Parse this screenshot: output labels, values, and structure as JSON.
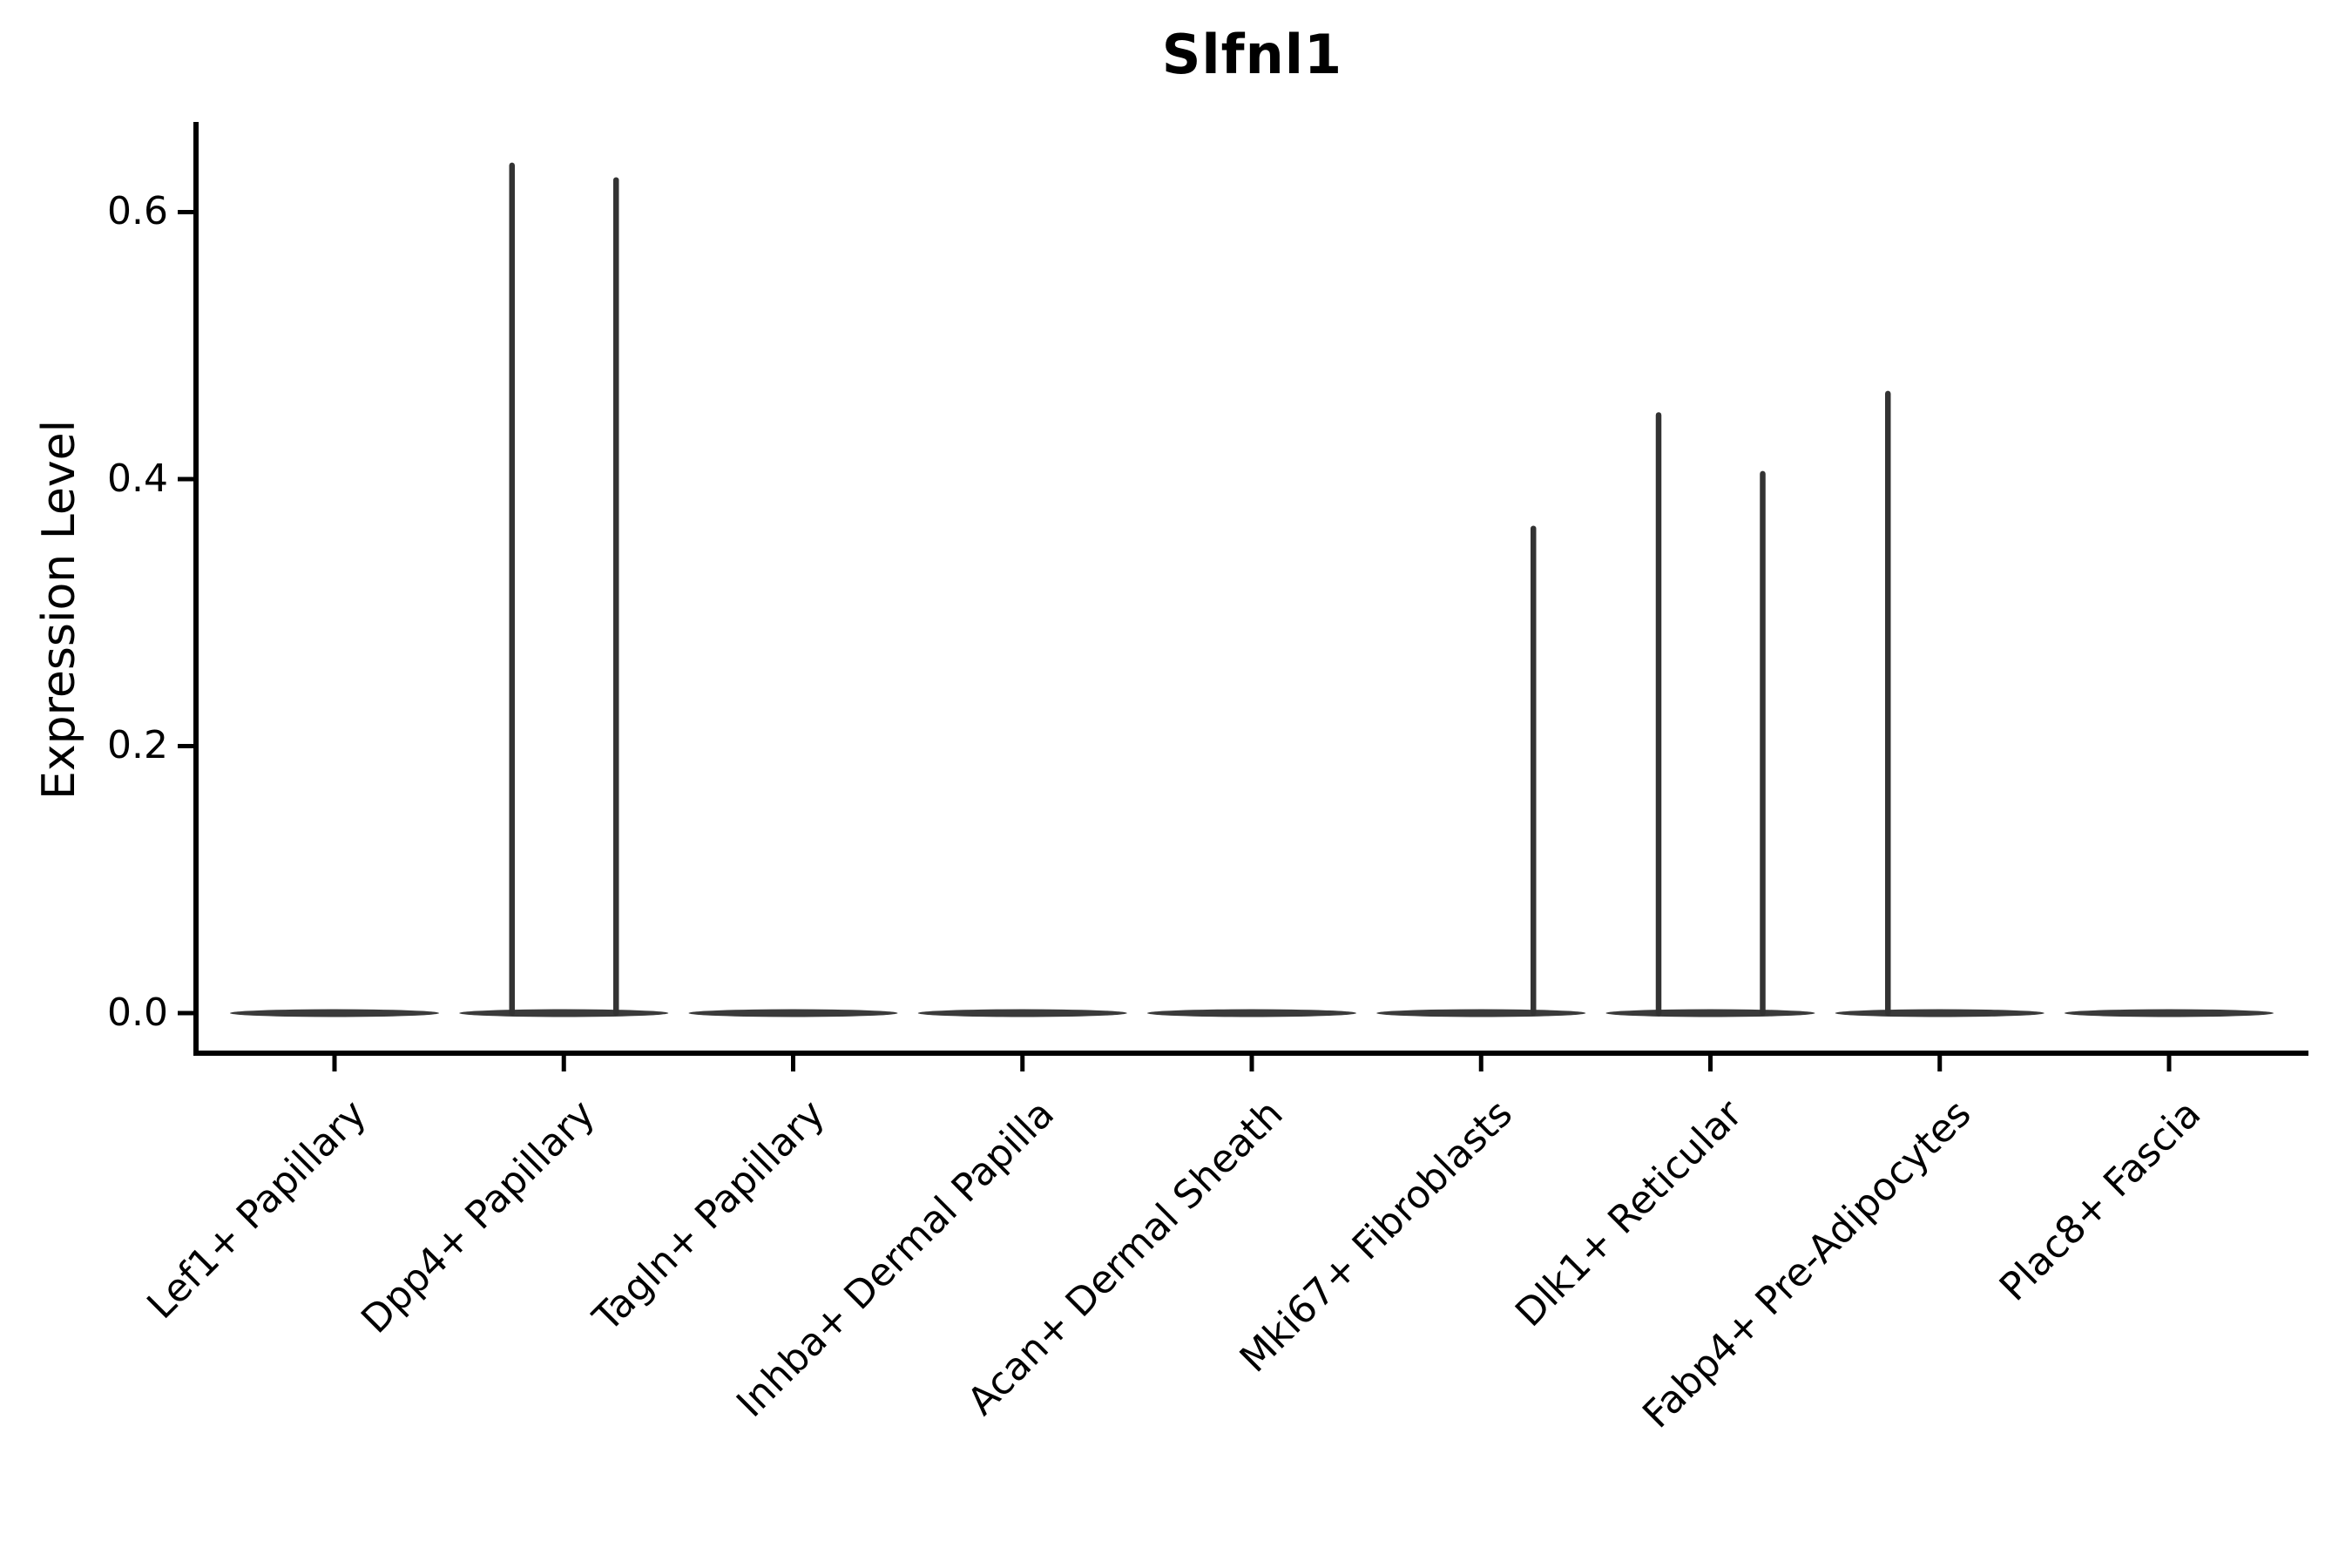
{
  "chart_data": {
    "type": "violin",
    "title": "Slfnl1",
    "xlabel": "",
    "ylabel": "Expression Level",
    "categories": [
      "Lef1+ Papillary",
      "Dpp4+ Papillary",
      "Tagln+ Papillary",
      "Inhba+ Dermal Papilla",
      "Acan+ Dermal Sheath",
      "Mki67+ Fibroblasts",
      "Dlk1+ Reticular",
      "Fabp4+ Pre-Adipocytes",
      "Plac8+ Fascia"
    ],
    "y_ticks": [
      "0.0",
      "0.2",
      "0.4",
      "0.6"
    ],
    "y_tick_values": [
      0.0,
      0.2,
      0.4,
      0.6
    ],
    "ylim": [
      -0.03,
      0.667
    ],
    "grid": false,
    "legend": "none",
    "violins": [
      {
        "category": "Lef1+ Papillary",
        "baseline_value": 0.0,
        "spikes": []
      },
      {
        "category": "Dpp4+ Papillary",
        "baseline_value": 0.0,
        "spikes": [
          {
            "group": "left",
            "max": 0.635
          },
          {
            "group": "right",
            "max": 0.624
          }
        ]
      },
      {
        "category": "Tagln+ Papillary",
        "baseline_value": 0.0,
        "spikes": []
      },
      {
        "category": "Inhba+ Dermal Papilla",
        "baseline_value": 0.0,
        "spikes": []
      },
      {
        "category": "Acan+ Dermal Sheath",
        "baseline_value": 0.0,
        "spikes": []
      },
      {
        "category": "Mki67+ Fibroblasts",
        "baseline_value": 0.0,
        "spikes": [
          {
            "group": "right",
            "max": 0.363
          }
        ]
      },
      {
        "category": "Dlk1+ Reticular",
        "baseline_value": 0.0,
        "spikes": [
          {
            "group": "left",
            "max": 0.448
          },
          {
            "group": "right",
            "max": 0.404
          }
        ]
      },
      {
        "category": "Fabp4+ Pre-Adipocytes",
        "baseline_value": 0.0,
        "spikes": [
          {
            "group": "left",
            "max": 0.464
          }
        ]
      },
      {
        "category": "Plac8+ Fascia",
        "baseline_value": 0.0,
        "spikes": []
      }
    ],
    "colors": {
      "axis": "#000000",
      "violin_body": "#3a3a3a",
      "violin_spike": "#333333",
      "text": "#000000",
      "background": "#ffffff"
    }
  }
}
